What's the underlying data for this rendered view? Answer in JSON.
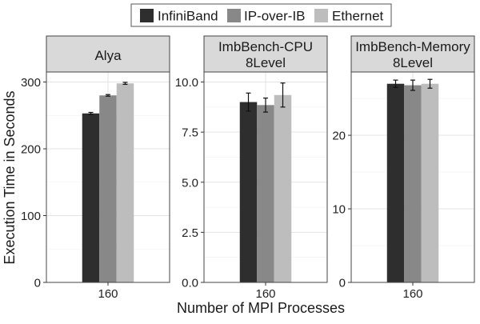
{
  "chart_data": {
    "type": "bar",
    "xlabel": "Number of MPI Processes",
    "ylabel": "Execution Time in Seconds",
    "legend": {
      "placement": "top",
      "entries": [
        "InfiniBand",
        "IP-over-IB",
        "Ethernet"
      ]
    },
    "series_colors": [
      "#2e2e2e",
      "#888888",
      "#bdbdbd"
    ],
    "grid": true,
    "panels": [
      {
        "title": [
          "Alya"
        ],
        "categories": [
          "160"
        ],
        "ylim": [
          0,
          315
        ],
        "yticks": [
          0,
          100,
          200,
          300
        ],
        "ytick_labels": [
          "0",
          "100",
          "200",
          "300"
        ],
        "values": [
          253,
          280,
          298
        ],
        "errors": [
          1.5,
          1.2,
          1.5
        ]
      },
      {
        "title": [
          "ImbBench-CPU",
          "8Level"
        ],
        "categories": [
          "160"
        ],
        "ylim": [
          0,
          10.5
        ],
        "yticks": [
          0,
          2.5,
          5,
          7.5,
          10
        ],
        "ytick_labels": [
          "0.0",
          "2.5",
          "5.0",
          "7.5",
          "10.0"
        ],
        "values": [
          9.0,
          8.85,
          9.35
        ],
        "errors": [
          0.45,
          0.35,
          0.6
        ]
      },
      {
        "title": [
          "ImbBench-Memory",
          "8Level"
        ],
        "categories": [
          "160"
        ],
        "ylim": [
          0,
          28.6
        ],
        "yticks": [
          0,
          10,
          20
        ],
        "ytick_labels": [
          "0",
          "10",
          "20"
        ],
        "values": [
          27.0,
          26.8,
          27.0
        ],
        "errors": [
          0.5,
          0.7,
          0.6
        ]
      }
    ]
  }
}
